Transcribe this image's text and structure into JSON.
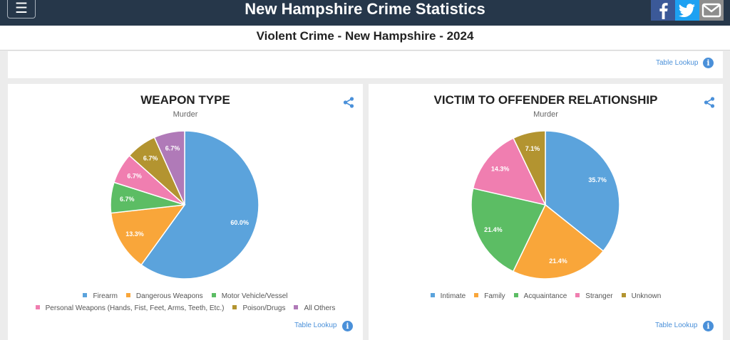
{
  "header": {
    "menu_icon": "hamburger-icon",
    "title": "New Hampshire Crime Statistics"
  },
  "social": {
    "facebook": "facebook-icon",
    "twitter": "twitter-icon",
    "email": "email-icon"
  },
  "subtitle": "Violent Crime - New Hampshire - 2024",
  "table_lookup": "Table Lookup",
  "info_glyph": "i",
  "colors": {
    "accent": "#4a90d9",
    "header_bg": "#26374a"
  },
  "chart_data": [
    {
      "type": "pie",
      "title": "WEAPON TYPE",
      "subtitle": "Murder",
      "categories": [
        "Firearm",
        "Dangerous Weapons",
        "Motor Vehicle/Vessel",
        "Personal Weapons (Hands, Fist, Feet, Arms, Teeth, Etc.)",
        "Poison/Drugs",
        "All Others"
      ],
      "values": [
        60.0,
        13.3,
        6.7,
        6.7,
        6.7,
        6.7
      ],
      "labels": [
        "60.0%",
        "13.3%",
        "6.7%",
        "6.7%",
        "6.7%",
        "6.7%"
      ],
      "colors": [
        "#5ba3dc",
        "#f9a63a",
        "#5cbd64",
        "#f07eb0",
        "#b39430",
        "#b07ab8"
      ],
      "legend": "bottom"
    },
    {
      "type": "pie",
      "title": "VICTIM TO OFFENDER RELATIONSHIP",
      "subtitle": "Murder",
      "categories": [
        "Intimate",
        "Family",
        "Acquaintance",
        "Stranger",
        "Unknown"
      ],
      "values": [
        35.7,
        21.4,
        21.4,
        14.3,
        7.1
      ],
      "labels": [
        "35.7%",
        "21.4%",
        "21.4%",
        "14.3%",
        "7.1%"
      ],
      "colors": [
        "#5ba3dc",
        "#f9a63a",
        "#5cbd64",
        "#f07eb0",
        "#b39430"
      ],
      "legend": "bottom"
    }
  ]
}
